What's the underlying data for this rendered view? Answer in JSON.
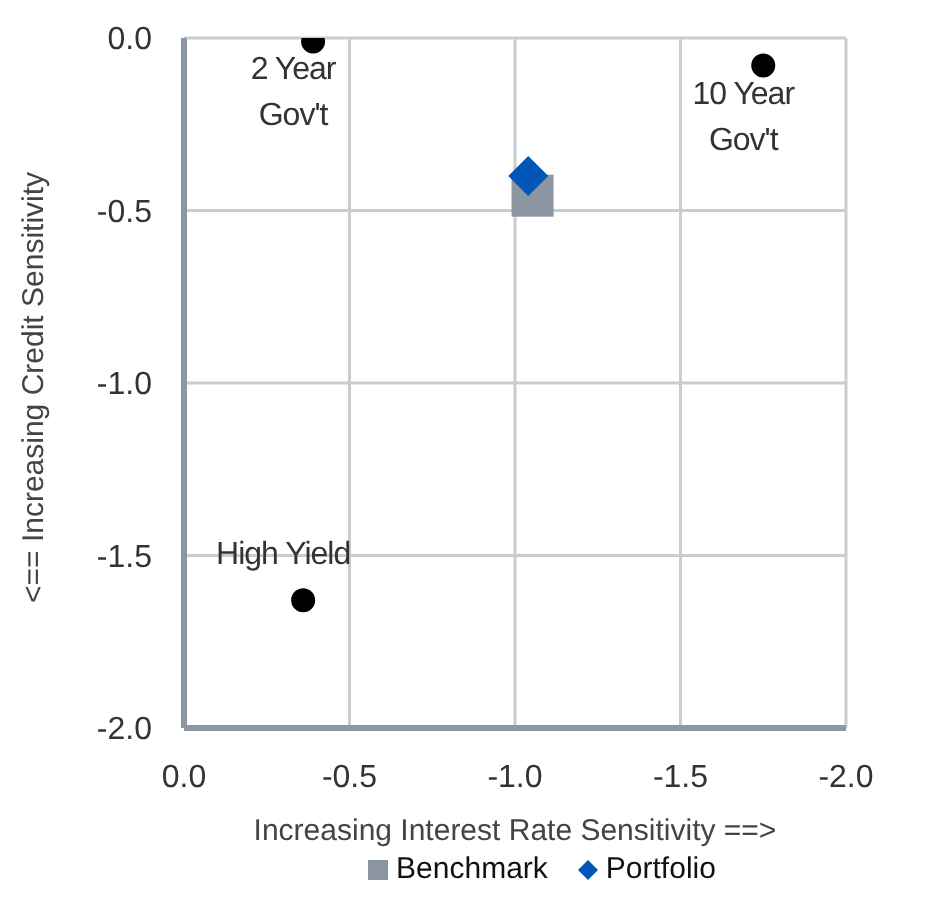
{
  "chart_data": {
    "type": "scatter",
    "xlabel": "Increasing Interest Rate Sensitivity ==>",
    "ylabel": "<== Increasing Credit Sensitivity",
    "xlim": [
      0,
      -2
    ],
    "ylim": [
      -2,
      0
    ],
    "xticks": [
      {
        "value": 0,
        "label": "0.0"
      },
      {
        "value": -0.5,
        "label": "-0.5"
      },
      {
        "value": -1,
        "label": "-1.0"
      },
      {
        "value": -1.5,
        "label": "-1.5"
      },
      {
        "value": -2,
        "label": "-2.0"
      }
    ],
    "yticks": [
      {
        "value": -2,
        "label": "-2.0"
      },
      {
        "value": -1.5,
        "label": "-1.5"
      },
      {
        "value": -1,
        "label": "-1.0"
      },
      {
        "value": -0.5,
        "label": "-0.5"
      },
      {
        "value": 0,
        "label": "0.0"
      }
    ],
    "grid": true,
    "legend": "bottom",
    "series": [
      {
        "color": "#000000",
        "marker": "circle",
        "x": [
          -0.39,
          -1.75,
          -0.36
        ],
        "values": [
          -0.01,
          -0.08,
          -1.63
        ]
      },
      {
        "name": "Benchmark",
        "color": "#8c96a0",
        "marker": "square",
        "x": [
          -1.05
        ],
        "values": [
          -0.46
        ]
      },
      {
        "name": "Portfolio",
        "color": "#0055b8",
        "marker": "diamond",
        "x": [
          -1.04
        ],
        "values": [
          -0.4
        ]
      }
    ],
    "annotations": [
      {
        "text": "2 Year Gov't",
        "x": -0.39,
        "y": -0.01
      },
      {
        "text": "10 Year Gov't",
        "x": -1.75,
        "y": -0.08
      },
      {
        "text": "High Yield",
        "x": -0.36,
        "y": -1.63
      }
    ]
  }
}
